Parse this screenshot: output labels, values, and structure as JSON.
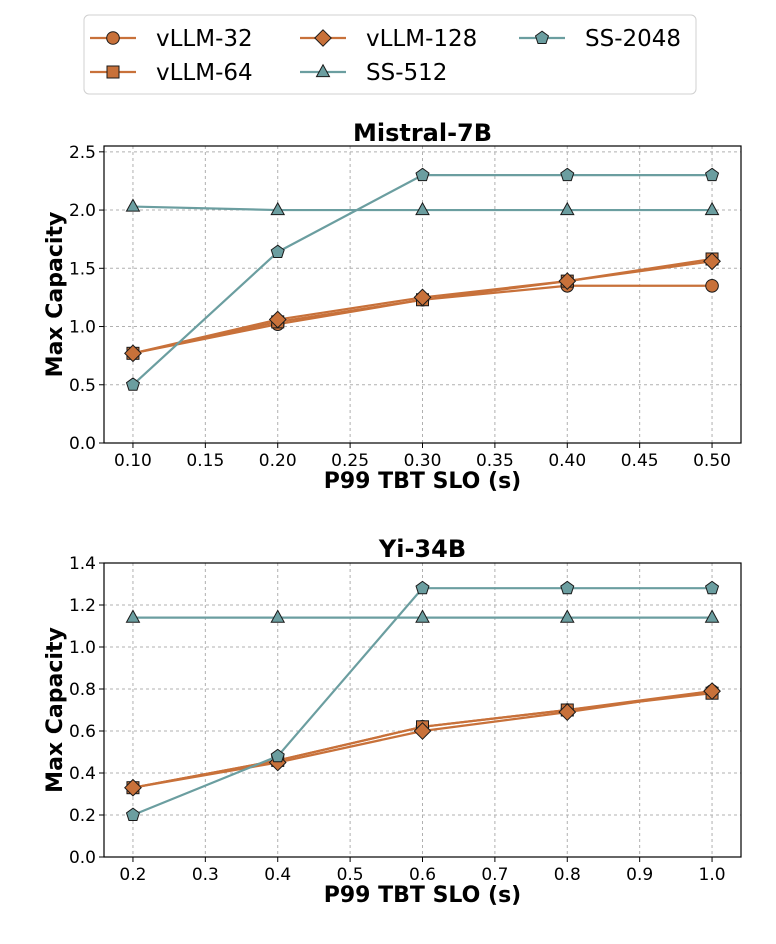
{
  "colors": {
    "vllm": "#c8713a",
    "ss": "#6b9ea0",
    "marker_edge": "#1a1a1a",
    "grid": "#b0b0b0"
  },
  "legend": [
    {
      "label": "vLLM-32",
      "series": 0
    },
    {
      "label": "vLLM-128",
      "series": 2
    },
    {
      "label": "SS-2048",
      "series": 4
    },
    {
      "label": "vLLM-64",
      "series": 1
    },
    {
      "label": "SS-512",
      "series": 3
    }
  ],
  "chart_data": [
    {
      "type": "line",
      "title": "Mistral-7B",
      "xlabel": "P99 TBT SLO (s)",
      "ylabel": "Max Capacity",
      "xlim": [
        0.08,
        0.52
      ],
      "ylim": [
        0.0,
        2.55
      ],
      "xticks": [
        "0.10",
        "0.15",
        "0.20",
        "0.25",
        "0.30",
        "0.35",
        "0.40",
        "0.45",
        "0.50"
      ],
      "yticks": [
        "0.0",
        "0.5",
        "1.0",
        "1.5",
        "2.0",
        "2.5"
      ],
      "x": [
        0.1,
        0.2,
        0.3,
        0.4,
        0.5
      ],
      "series": [
        {
          "name": "vLLM-32",
          "marker": "circle",
          "values": [
            0.77,
            1.02,
            1.23,
            1.35,
            1.35
          ]
        },
        {
          "name": "vLLM-64",
          "marker": "square",
          "values": [
            0.77,
            1.04,
            1.23,
            1.39,
            1.58
          ]
        },
        {
          "name": "vLLM-128",
          "marker": "diamond",
          "values": [
            0.77,
            1.06,
            1.25,
            1.39,
            1.56
          ]
        },
        {
          "name": "SS-512",
          "marker": "triangle",
          "values": [
            2.03,
            2.0,
            2.0,
            2.0,
            2.0
          ]
        },
        {
          "name": "SS-2048",
          "marker": "pentagon",
          "values": [
            0.5,
            1.64,
            2.3,
            2.3,
            2.3
          ]
        }
      ]
    },
    {
      "type": "line",
      "title": "Yi-34B",
      "xlabel": "P99 TBT SLO (s)",
      "ylabel": "Max Capacity",
      "xlim": [
        0.16,
        1.04
      ],
      "ylim": [
        0.0,
        1.4
      ],
      "xticks": [
        "0.2",
        "0.3",
        "0.4",
        "0.5",
        "0.6",
        "0.7",
        "0.8",
        "0.9",
        "1.0"
      ],
      "yticks": [
        "0.0",
        "0.2",
        "0.4",
        "0.6",
        "0.8",
        "1.0",
        "1.2",
        "1.4"
      ],
      "x": [
        0.2,
        0.4,
        0.6,
        0.8,
        1.0
      ],
      "series": [
        {
          "name": "vLLM-32",
          "marker": "circle",
          "values": [
            0.33,
            0.46,
            0.62,
            0.7,
            0.79
          ]
        },
        {
          "name": "vLLM-64",
          "marker": "square",
          "values": [
            0.33,
            0.46,
            0.62,
            0.7,
            0.78
          ]
        },
        {
          "name": "vLLM-128",
          "marker": "diamond",
          "values": [
            0.33,
            0.45,
            0.6,
            0.69,
            0.79
          ]
        },
        {
          "name": "SS-512",
          "marker": "triangle",
          "values": [
            1.14,
            1.14,
            1.14,
            1.14,
            1.14
          ]
        },
        {
          "name": "SS-2048",
          "marker": "pentagon",
          "values": [
            0.2,
            0.48,
            1.28,
            1.28,
            1.28
          ]
        }
      ]
    }
  ]
}
